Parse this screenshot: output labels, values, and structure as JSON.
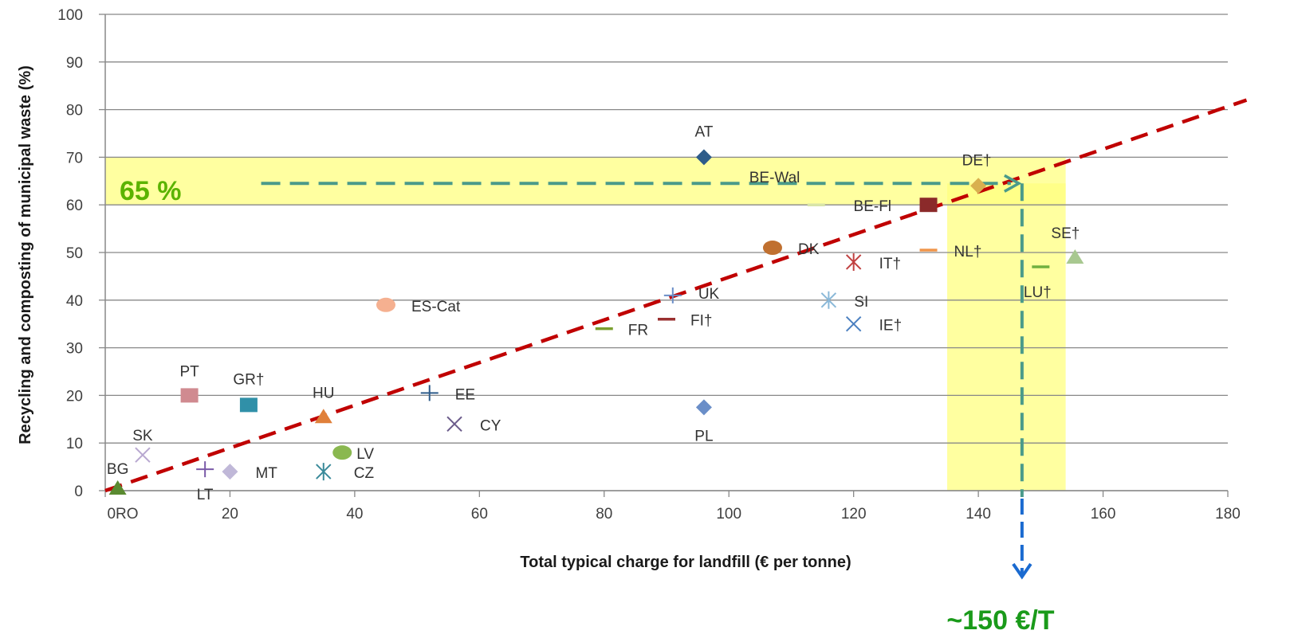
{
  "chart_data": {
    "type": "scatter",
    "title": "",
    "xlabel": "Total typical charge for landfill (€ per tonne)",
    "ylabel": "Recycling and composting of municipal waste (%)",
    "xlim": [
      0,
      180
    ],
    "ylim": [
      0,
      100
    ],
    "x_ticks": [
      "0",
      "20",
      "40",
      "60",
      "80",
      "100",
      "120",
      "140",
      "160",
      "180"
    ],
    "y_ticks": [
      "0",
      "10",
      "20",
      "30",
      "40",
      "50",
      "60",
      "70",
      "80",
      "90",
      "100"
    ],
    "x_zero_label": "0RO",
    "grid": "horizontal",
    "points": [
      {
        "label": "AT",
        "x": 96,
        "y": 70,
        "marker": "diamond",
        "color": "#2e5c8a"
      },
      {
        "label": "DE†",
        "x": 140,
        "y": 64,
        "marker": "diamond",
        "color": "#d9b04f"
      },
      {
        "label": "BE-Wal",
        "x": 114,
        "y": 60,
        "marker": "dash",
        "color": "#d8e4a8"
      },
      {
        "label": "BE-Fl",
        "x": 132,
        "y": 60,
        "marker": "square",
        "color": "#8b2a2a"
      },
      {
        "label": "DK",
        "x": 107,
        "y": 51,
        "marker": "circle",
        "color": "#c07030"
      },
      {
        "label": "NL†",
        "x": 132,
        "y": 50.5,
        "marker": "dash",
        "color": "#f0954a"
      },
      {
        "label": "IT†",
        "x": 120,
        "y": 48,
        "marker": "star",
        "color": "#c04040"
      },
      {
        "label": "SE†",
        "x": 155.5,
        "y": 49,
        "marker": "triangle",
        "color": "#a8c890"
      },
      {
        "label": "LU†",
        "x": 150,
        "y": 47,
        "marker": "dash",
        "color": "#70b040"
      },
      {
        "label": "UK",
        "x": 91,
        "y": 41,
        "marker": "plus",
        "color": "#6a8ec8"
      },
      {
        "label": "SI",
        "x": 116,
        "y": 40,
        "marker": "star",
        "color": "#8ab8d8"
      },
      {
        "label": "FI†",
        "x": 90,
        "y": 36,
        "marker": "dash",
        "color": "#9a3030"
      },
      {
        "label": "IE†",
        "x": 120,
        "y": 35,
        "marker": "x",
        "color": "#4a7fc0"
      },
      {
        "label": "FR",
        "x": 80,
        "y": 34,
        "marker": "dash",
        "color": "#7aa030"
      },
      {
        "label": "ES-Cat",
        "x": 45,
        "y": 39,
        "marker": "circle",
        "color": "#f5b090"
      },
      {
        "label": "EE",
        "x": 52,
        "y": 20.5,
        "marker": "plus",
        "color": "#2e5c8a"
      },
      {
        "label": "CY",
        "x": 56,
        "y": 14,
        "marker": "x",
        "color": "#6a5a8a"
      },
      {
        "label": "PL",
        "x": 96,
        "y": 17.5,
        "marker": "diamond",
        "color": "#6a8ec8"
      },
      {
        "label": "PT",
        "x": 13.5,
        "y": 20,
        "marker": "square",
        "color": "#d08a90"
      },
      {
        "label": "GR†",
        "x": 23,
        "y": 18,
        "marker": "square",
        "color": "#3090a8"
      },
      {
        "label": "HU",
        "x": 35,
        "y": 15.5,
        "marker": "triangle",
        "color": "#e0803a"
      },
      {
        "label": "LV",
        "x": 38,
        "y": 8,
        "marker": "circle",
        "color": "#8ab850"
      },
      {
        "label": "CZ",
        "x": 35,
        "y": 4,
        "marker": "star",
        "color": "#3a8a9a"
      },
      {
        "label": "MT",
        "x": 20,
        "y": 4,
        "marker": "diamond",
        "color": "#c0b8d8"
      },
      {
        "label": "LT",
        "x": 16,
        "y": 4.5,
        "marker": "plus",
        "color": "#7a5aa8"
      },
      {
        "label": "SK",
        "x": 6,
        "y": 7.5,
        "marker": "x",
        "color": "#b8a8d0"
      },
      {
        "label": "BG",
        "x": 2,
        "y": 0.5,
        "marker": "triangle",
        "color": "#5a8a30"
      }
    ],
    "trend_line": {
      "from": [
        0,
        0
      ],
      "to": [
        183,
        82
      ],
      "color": "#c00000",
      "style": "dashed"
    },
    "highlight_band_y": {
      "from": 60,
      "to": 70,
      "color": "#ffff80"
    },
    "highlight_band_x": {
      "from": 135,
      "to": 154,
      "y_from": 0,
      "y_to": 64.5,
      "color": "#ffff80"
    },
    "target_line": {
      "y": 64.5,
      "x_from": 25,
      "x_to": 147,
      "color": "#4a9a8a"
    },
    "target_drop": {
      "x": 147,
      "y_from": 64.5,
      "color": "#4a9a8a",
      "arrow_color": "#1a6ad0"
    }
  },
  "annotations": {
    "pct_label": "65 %",
    "price_label": "~150 €/T"
  }
}
